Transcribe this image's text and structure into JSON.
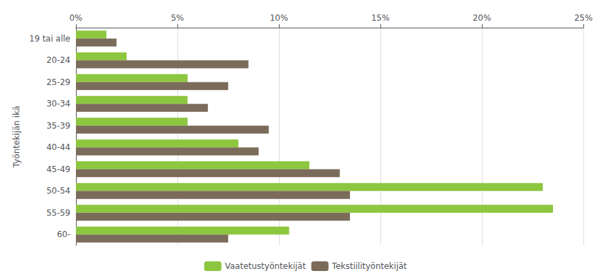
{
  "chart_data": {
    "type": "bar",
    "orientation": "horizontal",
    "categories": [
      "19 tai alle",
      "20-24",
      "25-29",
      "30-34",
      "35-39",
      "40-44",
      "45-49",
      "50-54",
      "55-59",
      "60-"
    ],
    "ylabel": "Työntekijän ikä",
    "series": [
      {
        "name": "Vaatetustyöntekijät",
        "color": "#8DC63F",
        "values": [
          1.5,
          2.5,
          5.5,
          5.5,
          5.5,
          8.0,
          11.5,
          23.0,
          23.5,
          10.5
        ]
      },
      {
        "name": "Tekstiilityöntekijät",
        "color": "#7B6B5A",
        "values": [
          2.0,
          8.5,
          7.5,
          6.5,
          9.5,
          9.0,
          13.0,
          13.5,
          13.5,
          7.5
        ]
      }
    ],
    "xlim": [
      0,
      25
    ],
    "xticks": [
      {
        "value": 0,
        "label": "0%"
      },
      {
        "value": 5,
        "label": "5%"
      },
      {
        "value": 10,
        "label": "10%"
      },
      {
        "value": 15,
        "label": "15%"
      },
      {
        "value": 20,
        "label": "20%"
      },
      {
        "value": 25,
        "label": "25%"
      }
    ],
    "grid": true,
    "legend": "bottom"
  }
}
